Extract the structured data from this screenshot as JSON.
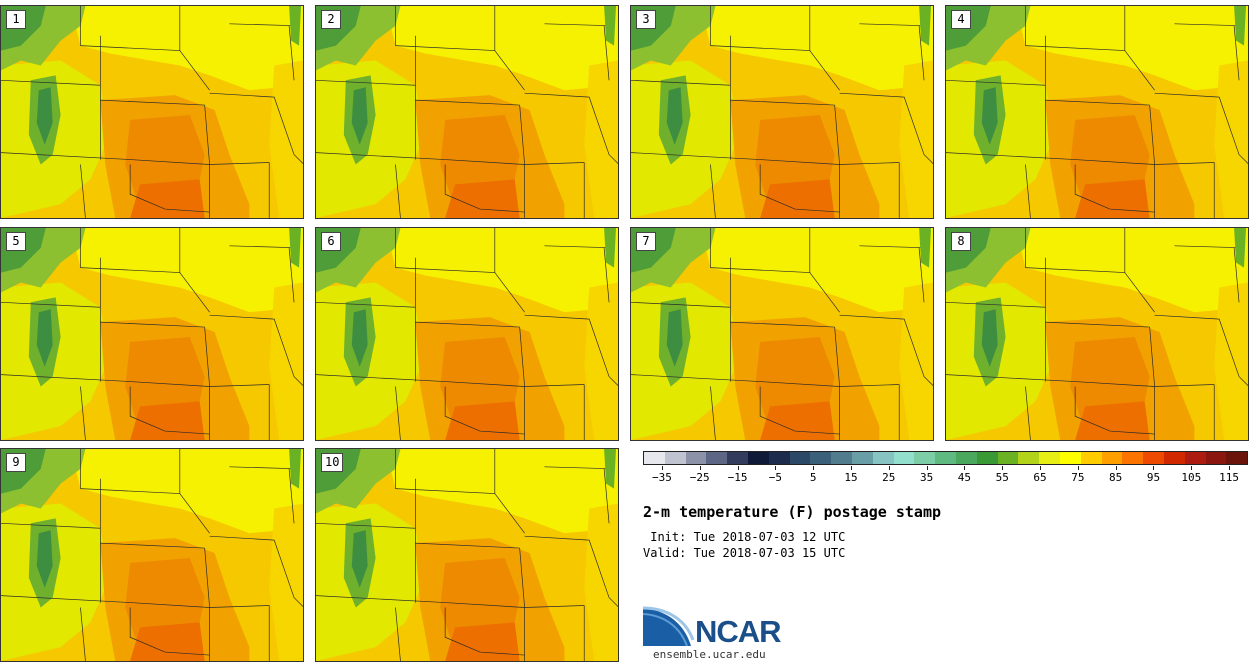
{
  "panels": [
    "1",
    "2",
    "3",
    "4",
    "5",
    "6",
    "7",
    "8",
    "9",
    "10"
  ],
  "colorbar": {
    "colors": [
      "#e6e8ee",
      "#bfc4d0",
      "#8c93a8",
      "#5d6684",
      "#343c5e",
      "#0f1a38",
      "#1d2c4d",
      "#2c4867",
      "#3b607a",
      "#507c8d",
      "#6a9ea6",
      "#86c3c2",
      "#93dfcd",
      "#7dcda6",
      "#5fba82",
      "#49a85e",
      "#399a35",
      "#6ab224",
      "#b2d319",
      "#e6ee15",
      "#ffff00",
      "#ffcc00",
      "#ff9f00",
      "#fb7400",
      "#ee4b00",
      "#d22800",
      "#ad1c10",
      "#8a160f",
      "#6a140c"
    ],
    "tick_labels": [
      "−35",
      "−25",
      "−15",
      "−5",
      "5",
      "15",
      "25",
      "35",
      "45",
      "55",
      "65",
      "75",
      "85",
      "95",
      "105",
      "115"
    ],
    "range": [
      -40,
      120
    ]
  },
  "title": "2-m temperature (F) postage stamp",
  "init": " Init: Tue 2018-07-03 12 UTC",
  "valid": "Valid: Tue 2018-07-03 15 UTC",
  "logo": {
    "text": "NCAR",
    "url": "ensemble.ucar.edu",
    "color": "#1a4f8a",
    "swoosh_color": "#4f8fc6"
  }
}
